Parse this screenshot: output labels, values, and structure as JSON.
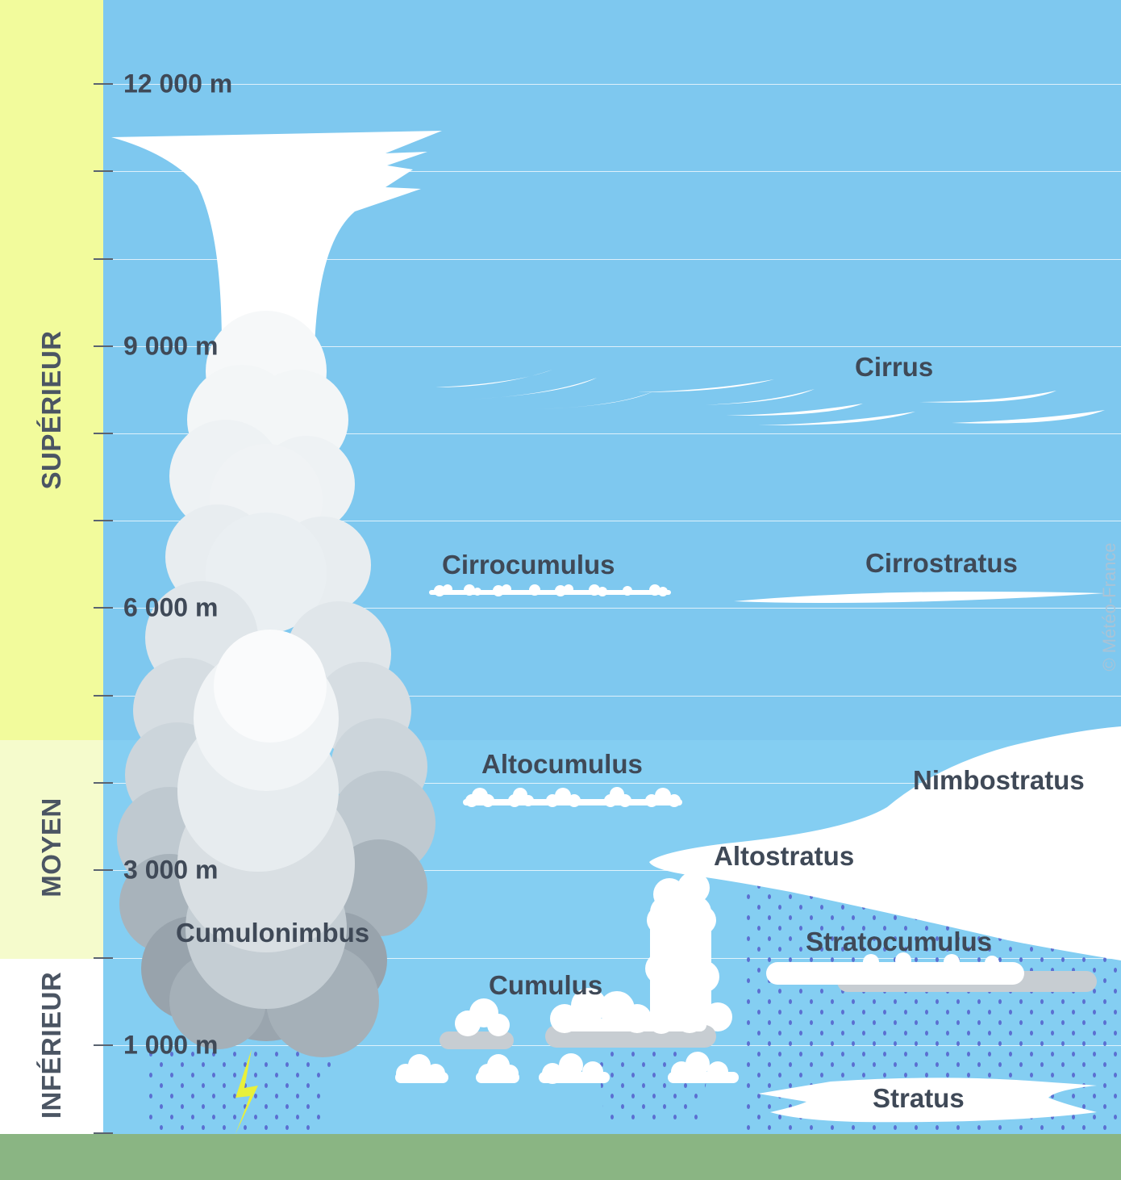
{
  "bands": {
    "superieur": "SUPÉRIEUR",
    "moyen": "MOYEN",
    "inferieur": "INFÉRIEUR"
  },
  "altitudes": {
    "a12000": "12 000 m",
    "a9000": "9 000 m",
    "a6000": "6 000 m",
    "a3000": "3 000 m",
    "a1000": "1 000 m"
  },
  "clouds": {
    "cirrus": "Cirrus",
    "cirrocumulus": "Cirrocumulus",
    "cirrostratus": "Cirrostratus",
    "altocumulus": "Altocumulus",
    "nimbostratus": "Nimbostratus",
    "altostratus": "Altostratus",
    "stratocumulus": "Stratocumulus",
    "cumulonimbus": "Cumulonimbus",
    "cumulus": "Cumulus",
    "stratus": "Stratus"
  },
  "copyright": "© Météo-France",
  "colors": {
    "sky_upper": "#7ec8ef",
    "sky_lower": "#84cef2",
    "band_superieur": "#f2fb9c",
    "band_moyen": "#f5fbcc",
    "band_inferieur": "#ffffff",
    "ground": "#8ab583",
    "rain": "#5b6fd1",
    "lightning": "#e8f03a",
    "label_text": "#3f4957"
  }
}
